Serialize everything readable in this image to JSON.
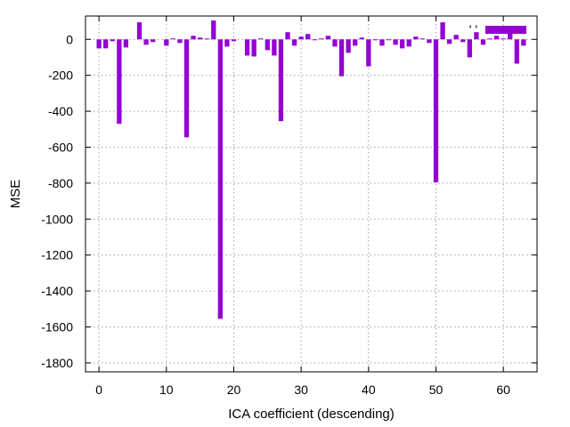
{
  "chart_data": {
    "type": "bar",
    "title": "",
    "xlabel": "ICA coefficient (descending)",
    "ylabel": "MSE",
    "xlim": [
      -2,
      65
    ],
    "ylim": [
      -1850,
      130
    ],
    "xticks": [
      0,
      10,
      20,
      30,
      40,
      50,
      60
    ],
    "yticks": [
      0,
      -200,
      -400,
      -600,
      -800,
      -1000,
      -1200,
      -1400,
      -1600,
      -1800
    ],
    "grid": true,
    "legend": {
      "position": "top-right",
      "entries": [
        {
          "label": "' '",
          "color": "#9400d3"
        }
      ]
    },
    "bar_color": "#9400d3",
    "x": [
      0,
      1,
      2,
      3,
      4,
      5,
      6,
      7,
      8,
      9,
      10,
      11,
      12,
      13,
      14,
      15,
      16,
      17,
      18,
      19,
      20,
      21,
      22,
      23,
      24,
      25,
      26,
      27,
      28,
      29,
      30,
      31,
      32,
      33,
      34,
      35,
      36,
      37,
      38,
      39,
      40,
      41,
      42,
      43,
      44,
      45,
      46,
      47,
      48,
      49,
      50,
      51,
      52,
      53,
      54,
      55,
      56,
      57,
      58,
      59,
      60,
      61,
      62,
      63
    ],
    "values": [
      -50,
      -50,
      -10,
      -470,
      -45,
      0,
      95,
      -30,
      -15,
      0,
      -35,
      5,
      -20,
      -545,
      20,
      10,
      5,
      105,
      -1555,
      -40,
      -10,
      0,
      -90,
      -95,
      5,
      -60,
      -90,
      -455,
      40,
      -35,
      15,
      30,
      -5,
      5,
      20,
      -40,
      -205,
      -75,
      -35,
      10,
      -150,
      -5,
      -35,
      -5,
      -30,
      -50,
      -40,
      15,
      5,
      -20,
      -795,
      95,
      -25,
      25,
      -15,
      -100,
      40,
      -30,
      5,
      20,
      5,
      40,
      -135,
      -35
    ]
  }
}
